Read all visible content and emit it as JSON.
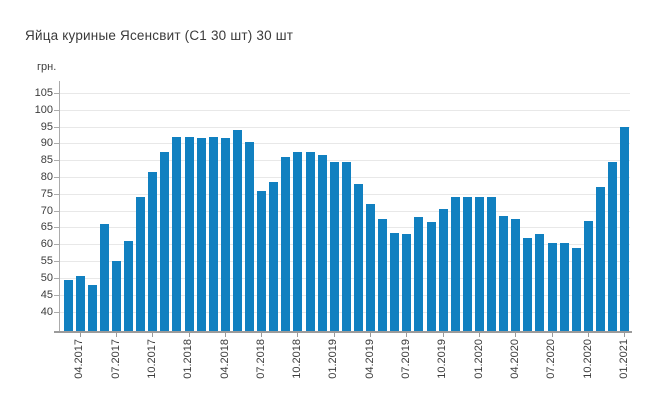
{
  "chart_data": {
    "type": "bar",
    "title": "Яйца куриные Ясенсвит (С1 30 шт) 30 шт",
    "ylabel": "грн.",
    "bar_color": "#1180c0",
    "grid_color": "#e8e8e8",
    "axis_color": "#9b9b9b",
    "text_color": "#3c3c3c",
    "grid": "horizontal-on",
    "legend": "none",
    "y_ticks": [
      40,
      45,
      50,
      55,
      60,
      65,
      70,
      75,
      80,
      85,
      90,
      95,
      100,
      105
    ],
    "ylim": [
      34,
      107.5
    ],
    "categories": [
      "03.2017",
      "04.2017",
      "05.2017",
      "06.2017",
      "07.2017",
      "08.2017",
      "09.2017",
      "10.2017",
      "11.2017",
      "12.2017",
      "01.2018",
      "02.2018",
      "03.2018",
      "04.2018",
      "05.2018",
      "06.2018",
      "07.2018",
      "08.2018",
      "09.2018",
      "10.2018",
      "11.2018",
      "12.2018",
      "01.2019",
      "02.2019",
      "03.2019",
      "04.2019",
      "05.2019",
      "06.2019",
      "07.2019",
      "08.2019",
      "09.2019",
      "10.2019",
      "11.2019",
      "12.2019",
      "01.2020",
      "02.2020",
      "03.2020",
      "04.2020",
      "05.2020",
      "06.2020",
      "07.2020",
      "08.2020",
      "09.2020",
      "10.2020",
      "11.2020",
      "12.2020",
      "01.2021"
    ],
    "values": [
      49.5,
      50.5,
      48,
      66,
      55,
      61,
      74,
      81.5,
      87.5,
      92,
      92,
      91.5,
      92,
      91.5,
      94,
      90.5,
      76,
      78.5,
      86,
      87.5,
      87.5,
      86.5,
      84.5,
      84.5,
      78,
      72,
      67.5,
      63.5,
      63,
      68,
      66.5,
      70.5,
      74,
      74,
      74,
      74,
      68.5,
      67.5,
      62,
      63,
      60.5,
      60.5,
      59,
      67,
      77,
      84.5,
      95
    ],
    "x_tick_labels": [
      "04.2017",
      "07.2017",
      "10.2017",
      "01.2018",
      "04.2018",
      "07.2018",
      "10.2018",
      "01.2019",
      "04.2019",
      "07.2019",
      "10.2019",
      "01.2020",
      "04.2020",
      "07.2020",
      "10.2020",
      "01.2021"
    ]
  }
}
